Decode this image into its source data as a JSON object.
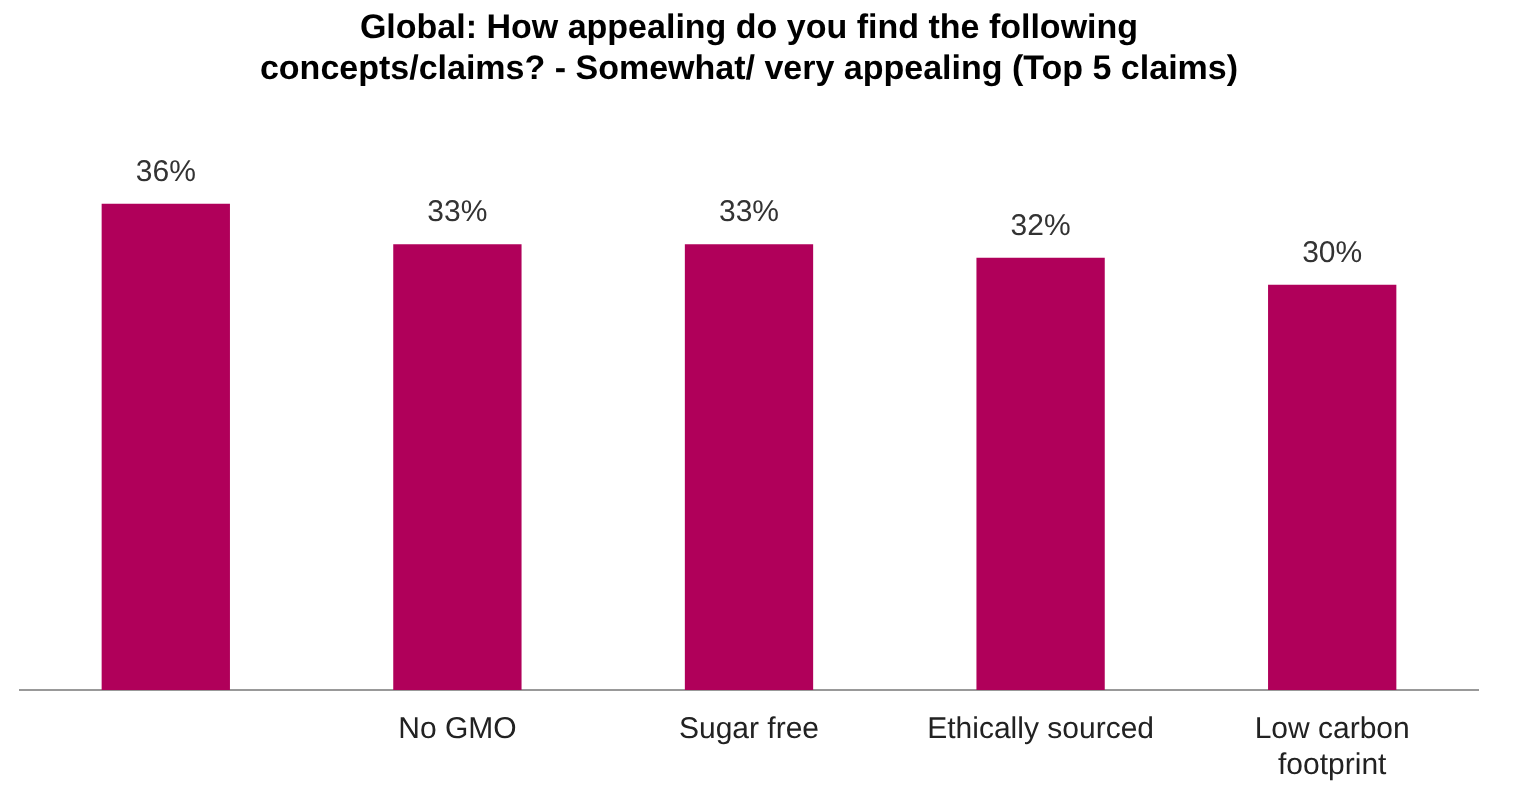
{
  "chart_data": {
    "type": "bar",
    "title": [
      "Global: How appealing do you find the following",
      "concepts/claims? - Somewhat/ very appealing (Top 5 claims)"
    ],
    "categories": [
      null,
      "No GMO",
      "Sugar free",
      "Ethically sourced",
      [
        "Low carbon",
        "footprint"
      ]
    ],
    "values": [
      36,
      33,
      33,
      32,
      30
    ],
    "color": "#b0005a",
    "data_labels": true,
    "value_labels": [
      "36%",
      "33%",
      "33%",
      "32%",
      "30%"
    ],
    "grid": false,
    "legend": false,
    "tick_labels": "x"
  }
}
